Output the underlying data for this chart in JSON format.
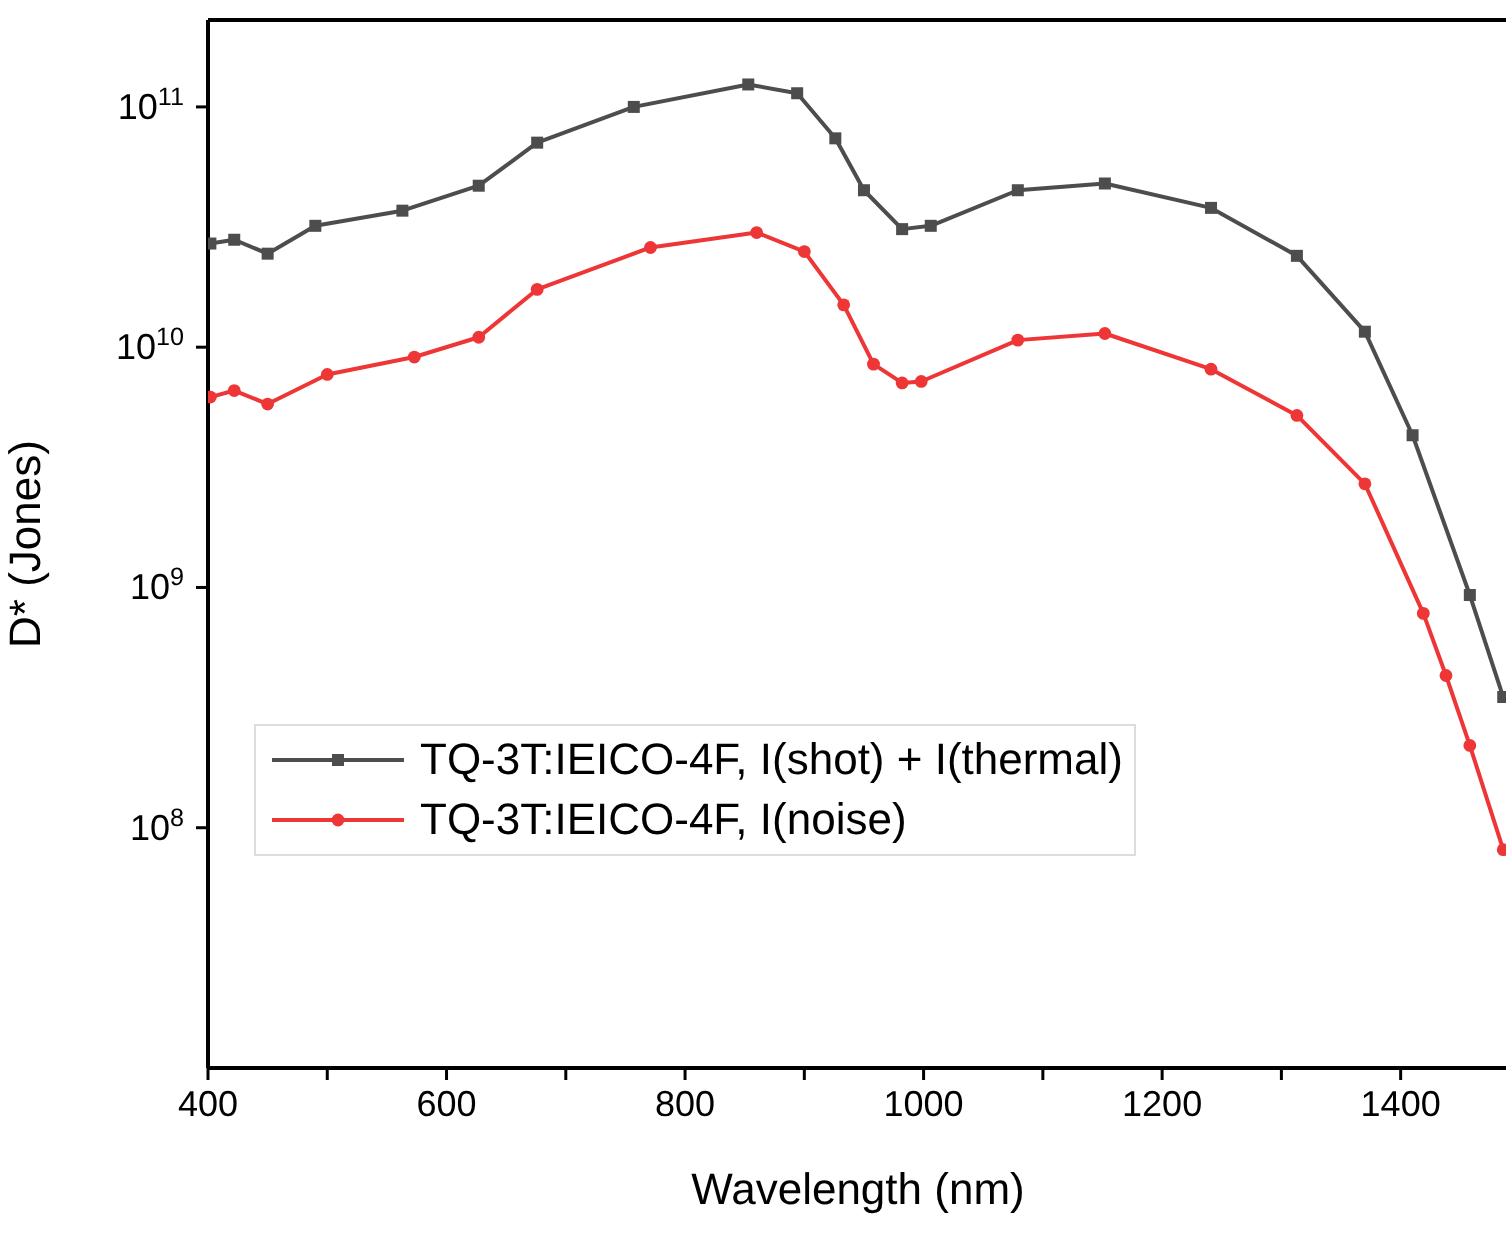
{
  "chart_data": {
    "type": "line",
    "xlabel": "Wavelength (nm)",
    "ylabel": "D* (Jones)",
    "log": "y",
    "grid": false,
    "legend": "left",
    "line_style": "solid",
    "xlim": [
      400,
      1490
    ],
    "xticks": [
      400,
      {
        "value": 500,
        "label": null
      },
      600,
      {
        "value": 700,
        "label": null
      },
      800,
      {
        "value": 900,
        "label": null
      },
      1000,
      {
        "value": 1100,
        "label": null
      },
      1200,
      {
        "value": 1300,
        "label": null
      },
      1400
    ],
    "ylim": [
      10000000,
      230000000000
    ],
    "yticks": [
      {
        "value": 100000000,
        "label": "10$^{8}$"
      },
      {
        "value": 1000000000,
        "label": "10$^{9}$"
      },
      {
        "value": 10000000000,
        "label": "10$^{10}$"
      },
      {
        "value": 100000000000,
        "label": "10$^{11}$"
      }
    ],
    "series": [
      {
        "name": "TQ-3T:IEICO-4F, I(shot) + I(thermal)",
        "color": "#4d4d4d",
        "marker": "square",
        "x": [
          402,
          422,
          450,
          490,
          563,
          627,
          676,
          757,
          853,
          894,
          926,
          950,
          982,
          1006,
          1079,
          1152,
          1241,
          1313,
          1370,
          1410,
          1458,
          1486
        ],
        "values": [
          27000000000,
          28000000000,
          24500000000,
          32000000000,
          37000000000,
          47000000000,
          71000000000,
          100000000000,
          124000000000,
          114000000000,
          74000000000,
          45000000000,
          31000000000,
          32000000000,
          45000000000,
          48000000000,
          38000000000,
          24000000000,
          11600000000,
          4300000000,
          930000000,
          350000000
        ]
      },
      {
        "name": "TQ-3T:IEICO-4F, I(noise)",
        "color": "#ee3636",
        "marker": "circle",
        "x": [
          402,
          422,
          450,
          500,
          573,
          627,
          676,
          771,
          860,
          900,
          933,
          958,
          982,
          998,
          1079,
          1152,
          1241,
          1313,
          1370,
          1419,
          1438,
          1458,
          1486
        ],
        "values": [
          6200000000,
          6600000000,
          5800000000,
          7700000000,
          9100000000,
          11000000000,
          17400000000,
          26000000000,
          30000000000,
          25000000000,
          15000000000,
          8500000000,
          7100000000,
          7200000000,
          10700000000,
          11400000000,
          8100000000,
          5200000000,
          2700000000,
          780000000,
          430000000,
          220000000,
          81000000
        ]
      }
    ]
  }
}
